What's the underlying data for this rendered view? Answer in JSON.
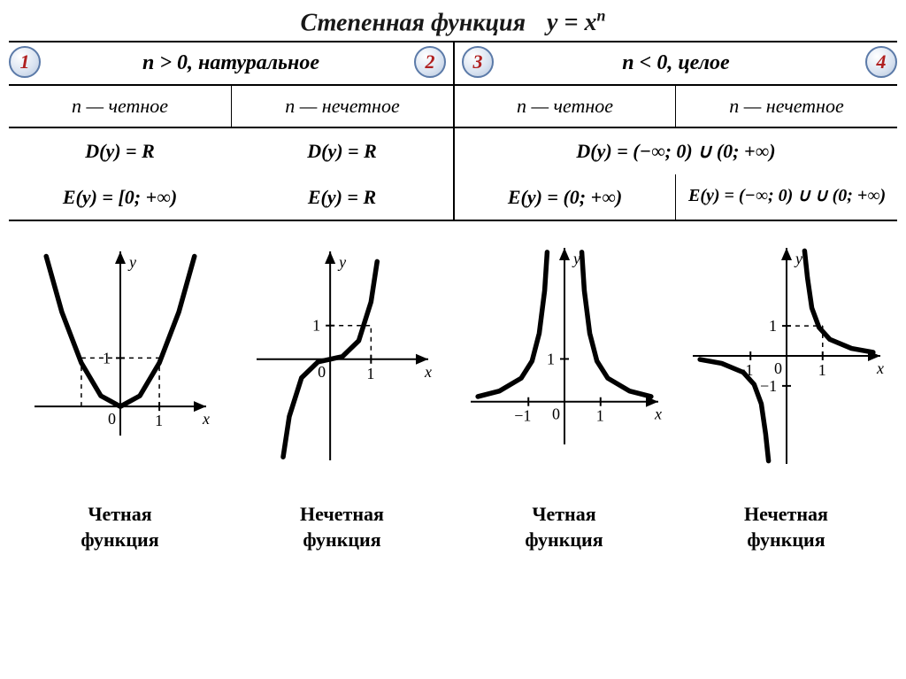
{
  "title": {
    "text": "Степенная функция",
    "formula_html": "y = x<sup>n</sup>"
  },
  "badges": [
    "1",
    "2",
    "3",
    "4"
  ],
  "headers": {
    "left": "n > 0, натуральное",
    "right": "n < 0, целое"
  },
  "subheaders": [
    "n — четное",
    "n — нечетное",
    "n — четное",
    "n — нечетное"
  ],
  "props": {
    "col1": {
      "D": "D(y) = R",
      "E": "E(y) = [0; +∞)"
    },
    "col2": {
      "D": "D(y) = R",
      "E": "E(y) = R"
    },
    "col34_D": "D(y) = (−∞; 0) ∪ (0; +∞)",
    "col3": {
      "E": "E(y) = (0; +∞)"
    },
    "col4": {
      "E": "E(y) = (−∞; 0) ∪ ∪ (0; +∞)"
    }
  },
  "bottom_labels": [
    "Четная функция",
    "Нечетная функция",
    "Четная функция",
    "Нечетная функция"
  ],
  "graphs": {
    "stroke": "#000000",
    "curve_width": 5.5,
    "axis_width": 2,
    "tick_font": 18,
    "g1": {
      "type": "parabola-even-pos",
      "xlim": [
        -2.2,
        2.2
      ],
      "ylim": [
        -0.6,
        3.2
      ],
      "ticks_x": [
        1
      ],
      "ticks_y": [
        1
      ],
      "axis_labels": {
        "x": "x",
        "y": "y"
      },
      "path_points": [
        [
          -1.9,
          3.1
        ],
        [
          -1.5,
          1.95
        ],
        [
          -1.0,
          0.9
        ],
        [
          -0.5,
          0.22
        ],
        [
          0,
          0
        ],
        [
          0.5,
          0.22
        ],
        [
          1.0,
          0.9
        ],
        [
          1.5,
          1.95
        ],
        [
          1.9,
          3.1
        ]
      ]
    },
    "g2": {
      "type": "cubic-odd-pos",
      "xlim": [
        -1.8,
        2.4
      ],
      "ylim": [
        -3.0,
        3.2
      ],
      "ticks_x": [
        1
      ],
      "ticks_y": [
        1
      ],
      "axis_labels": {
        "x": "x",
        "y": "y"
      },
      "path_points": [
        [
          -1.15,
          -2.9
        ],
        [
          -1.0,
          -1.7
        ],
        [
          -0.7,
          -0.55
        ],
        [
          -0.3,
          -0.08
        ],
        [
          0,
          0
        ],
        [
          0.3,
          0.08
        ],
        [
          0.7,
          0.55
        ],
        [
          1.0,
          1.7
        ],
        [
          1.15,
          2.9
        ]
      ]
    },
    "g3": {
      "type": "even-neg-hyper",
      "xlim": [
        -2.6,
        2.6
      ],
      "ylim": [
        -1.0,
        3.6
      ],
      "ticks_x": [
        -1,
        1
      ],
      "ticks_y": [
        1
      ],
      "axis_labels": {
        "x": "x",
        "y": "y"
      },
      "left_points": [
        [
          -2.4,
          0.12
        ],
        [
          -1.8,
          0.25
        ],
        [
          -1.2,
          0.55
        ],
        [
          -0.9,
          0.95
        ],
        [
          -0.7,
          1.6
        ],
        [
          -0.55,
          2.6
        ],
        [
          -0.48,
          3.5
        ]
      ],
      "right_points": [
        [
          2.4,
          0.12
        ],
        [
          1.8,
          0.25
        ],
        [
          1.2,
          0.55
        ],
        [
          0.9,
          0.95
        ],
        [
          0.7,
          1.6
        ],
        [
          0.55,
          2.6
        ],
        [
          0.48,
          3.5
        ]
      ]
    },
    "g4": {
      "type": "odd-neg-hyper",
      "xlim": [
        -2.6,
        2.6
      ],
      "ylim": [
        -3.6,
        3.6
      ],
      "ticks_x": [
        -1,
        1
      ],
      "ticks_y": [
        -1,
        1
      ],
      "axis_labels": {
        "x": "x",
        "y": "y"
      },
      "q1_points": [
        [
          2.4,
          0.12
        ],
        [
          1.8,
          0.25
        ],
        [
          1.2,
          0.55
        ],
        [
          0.9,
          0.95
        ],
        [
          0.7,
          1.6
        ],
        [
          0.58,
          2.6
        ],
        [
          0.5,
          3.5
        ]
      ],
      "q3_points": [
        [
          -2.4,
          -0.12
        ],
        [
          -1.8,
          -0.25
        ],
        [
          -1.2,
          -0.55
        ],
        [
          -0.9,
          -0.95
        ],
        [
          -0.7,
          -1.6
        ],
        [
          -0.58,
          -2.6
        ],
        [
          -0.5,
          -3.5
        ]
      ]
    }
  },
  "colors": {
    "ink": "#000000",
    "accent": "#b02020",
    "badge_border": "#5b7aa8"
  },
  "fontsizes": {
    "title": 28,
    "header": 24,
    "sub": 22,
    "label": 22
  }
}
